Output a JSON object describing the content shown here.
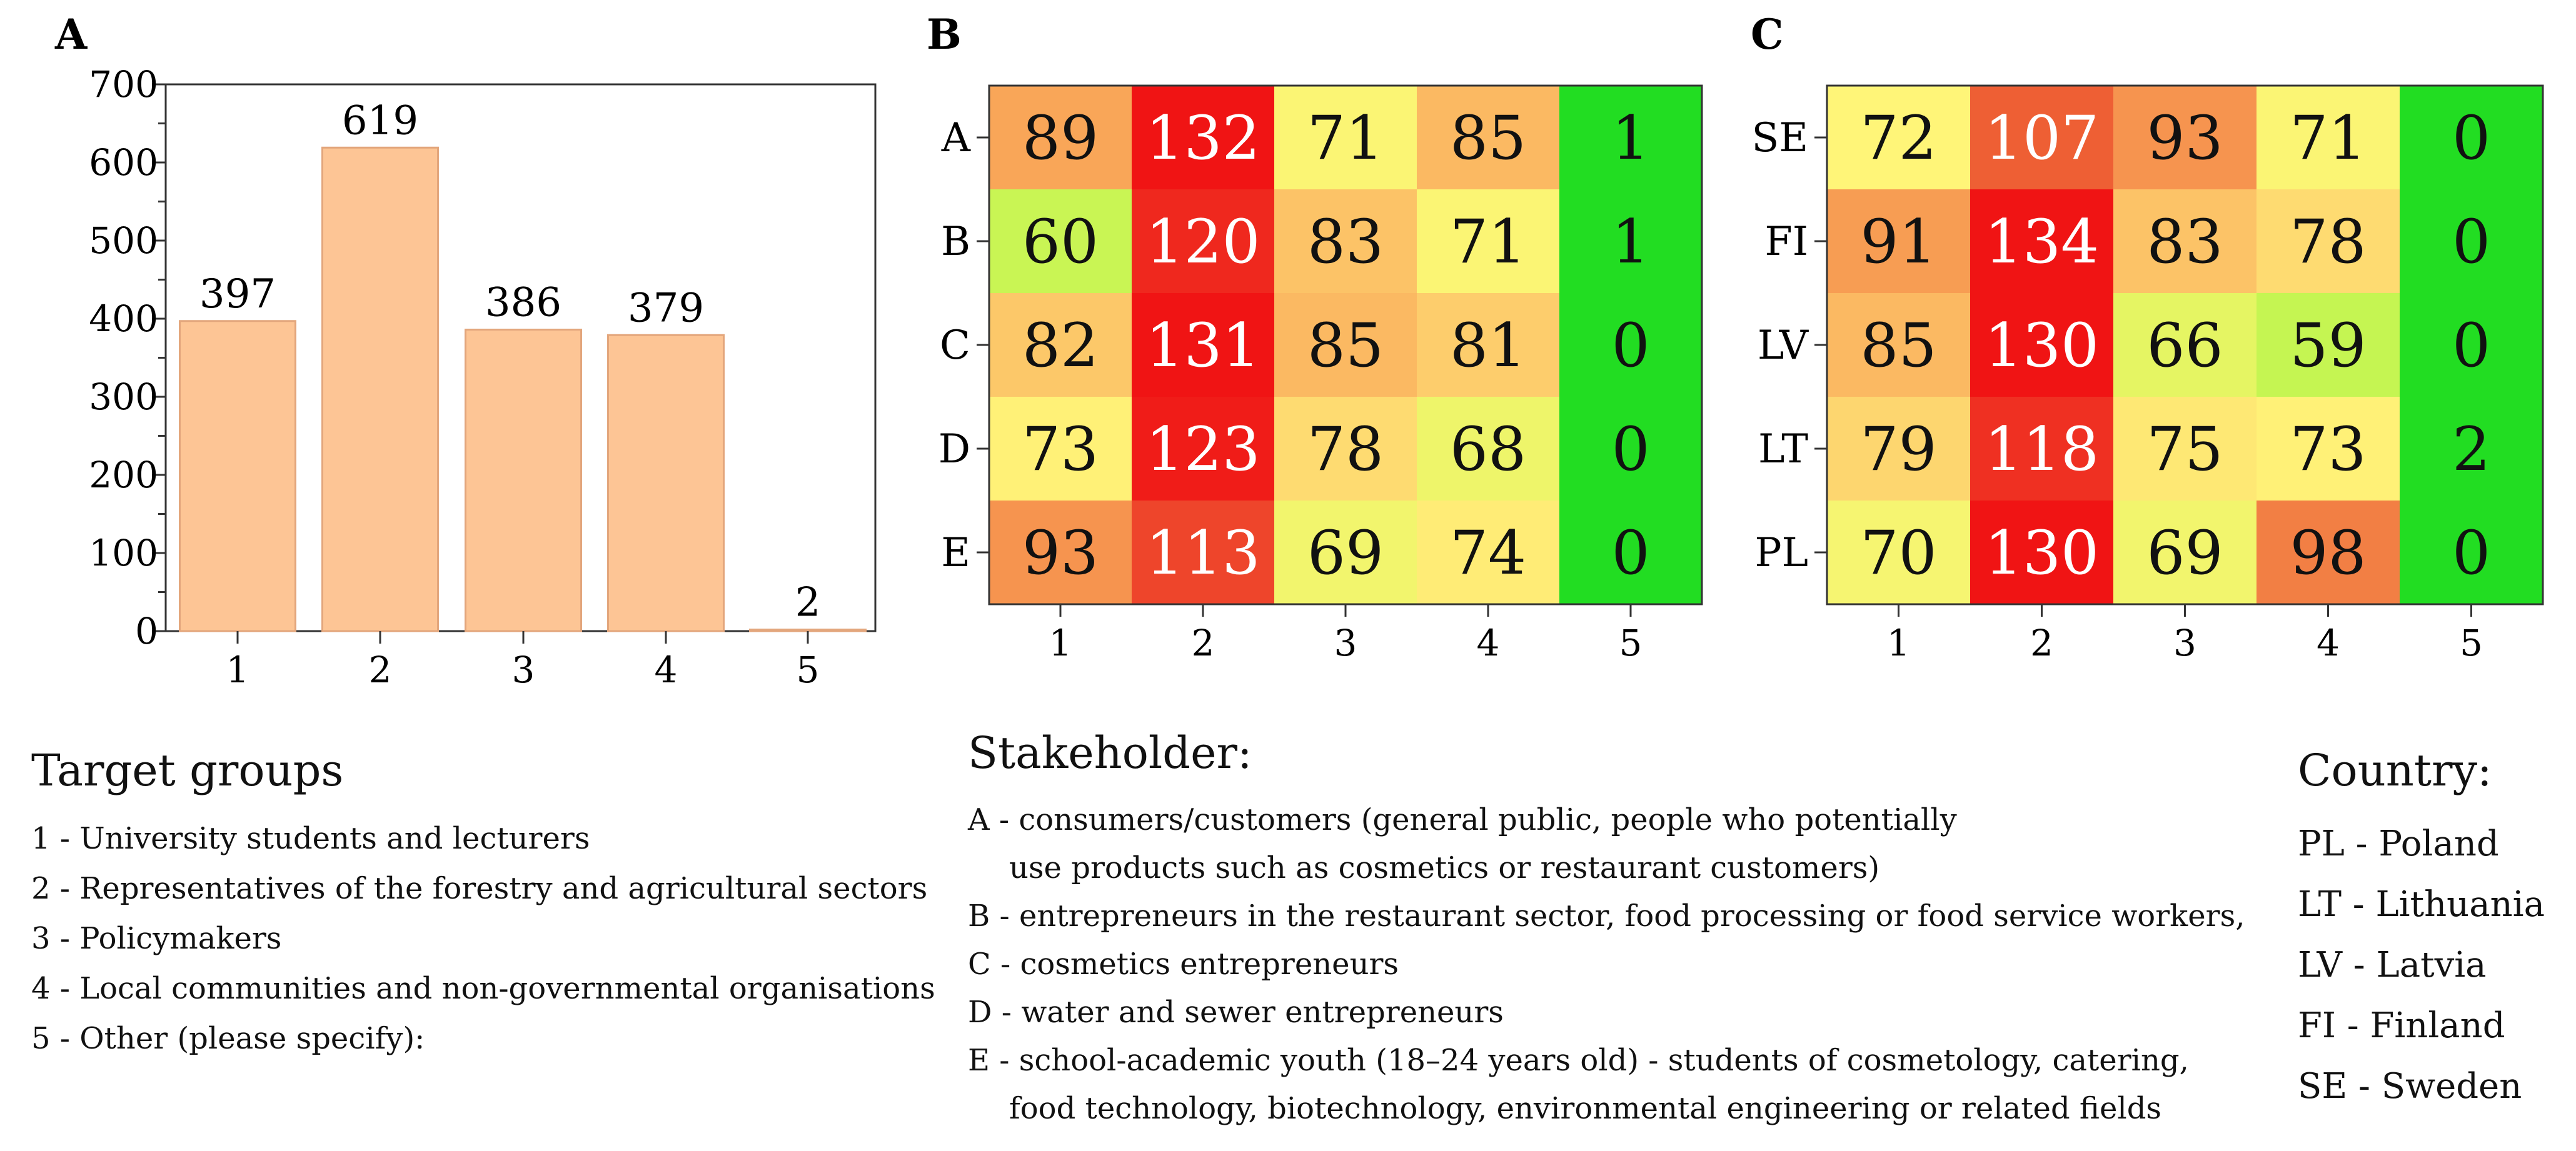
{
  "colors": {
    "bar_fill": "#fdc595",
    "bar_stroke": "#e3a67c",
    "axis": "#333333"
  },
  "chart_data": [
    {
      "id": "A",
      "panel_label": "A",
      "type": "bar",
      "categories": [
        "1",
        "2",
        "3",
        "4",
        "5"
      ],
      "values": [
        397,
        619,
        386,
        379,
        2
      ],
      "data_labels": [
        "397",
        "619",
        "386",
        "379",
        "2"
      ],
      "ylim": [
        0,
        700
      ],
      "yticks": [
        "0",
        "100",
        "200",
        "300",
        "400",
        "500",
        "600",
        "700"
      ],
      "xlabel": "",
      "ylabel": ""
    },
    {
      "id": "B",
      "panel_label": "B",
      "type": "heatmap",
      "columns": [
        "1",
        "2",
        "3",
        "4",
        "5"
      ],
      "rows": [
        "A",
        "B",
        "C",
        "D",
        "E"
      ],
      "values": [
        [
          89,
          132,
          71,
          85,
          1
        ],
        [
          60,
          120,
          83,
          71,
          1
        ],
        [
          82,
          131,
          85,
          81,
          0
        ],
        [
          73,
          123,
          78,
          68,
          0
        ],
        [
          93,
          113,
          69,
          74,
          0
        ]
      ],
      "colorscale": "green-yellow-red"
    },
    {
      "id": "C",
      "panel_label": "C",
      "type": "heatmap",
      "columns": [
        "1",
        "2",
        "3",
        "4",
        "5"
      ],
      "rows": [
        "SE",
        "FI",
        "LV",
        "LT",
        "PL"
      ],
      "values": [
        [
          72,
          107,
          93,
          71,
          0
        ],
        [
          91,
          134,
          83,
          78,
          0
        ],
        [
          85,
          130,
          66,
          59,
          0
        ],
        [
          79,
          118,
          75,
          73,
          2
        ],
        [
          70,
          130,
          69,
          98,
          0
        ]
      ],
      "colorscale": "green-yellow-red"
    }
  ],
  "legends": {
    "target": {
      "title": "Target groups",
      "items": [
        "1 - University students and lecturers",
        "2 - Representatives of the forestry and agricultural sectors",
        "3 - Policymakers",
        "4 - Local communities and non-governmental organisations",
        "5 - Other (please specify):"
      ]
    },
    "stakeholder": {
      "title": "Stakeholder:",
      "items": [
        "A - consumers/customers (general public, people who potentially",
        "use products such as cosmetics or restaurant customers)",
        "B - entrepreneurs in the restaurant sector, food processing or food service workers,",
        "C - cosmetics entrepreneurs",
        "D - water and sewer entrepreneurs",
        "E - school-academic youth (18–24 years old) - students of cosmetology, catering,",
        "food technology, biotechnology, environmental engineering or related fields"
      ]
    },
    "country": {
      "title": "Country:",
      "items": [
        "PL - Poland",
        "LT - Lithuania",
        "LV - Latvia",
        "FI  -  Finland",
        "SE - Sweden"
      ]
    }
  }
}
